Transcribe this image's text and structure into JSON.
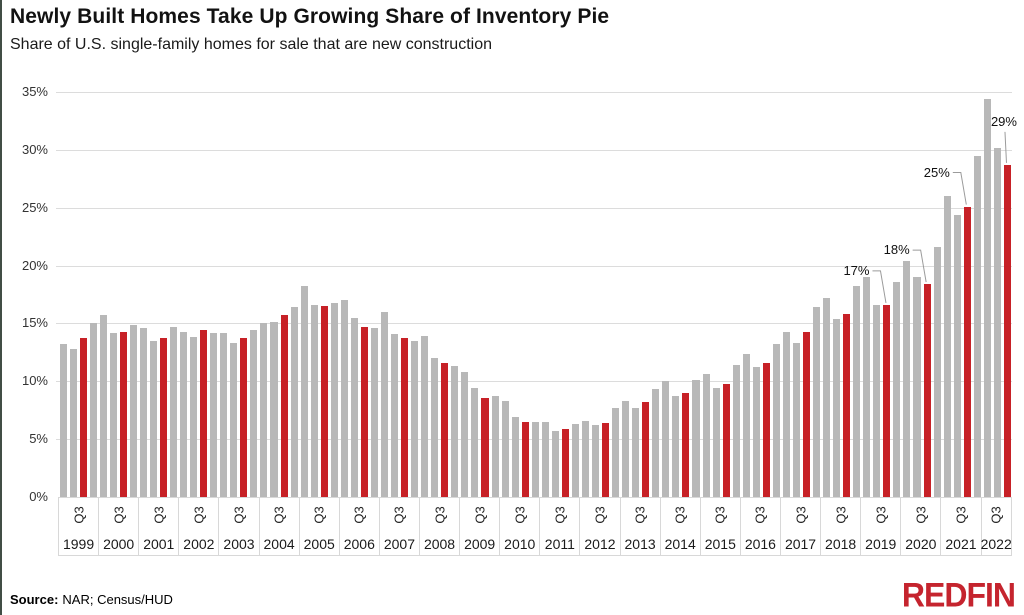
{
  "header": {
    "title": "Newly Built Homes Take Up Growing Share of Inventory Pie",
    "subtitle": "Share of U.S. single-family homes for sale that are new construction"
  },
  "chart_data": {
    "type": "bar",
    "title": "Newly Built Homes Take Up Growing Share of Inventory Pie",
    "subtitle": "Share of U.S. single-family homes for sale that are new construction",
    "unit": "percent",
    "ylim": [
      0,
      35
    ],
    "y_tick_step": 5,
    "y_tick_labels": [
      "0%",
      "5%",
      "10%",
      "15%",
      "20%",
      "25%",
      "30%",
      "35%"
    ],
    "grid": "horizontal",
    "legend": "none",
    "quarters": [
      "Q1",
      "Q2",
      "Q3",
      "Q4"
    ],
    "highlight_quarter": "Q3",
    "x_tick_label_per_year": "Q3",
    "years": [
      {
        "year": "1999",
        "values": [
          13.2,
          12.8,
          13.7,
          15.0
        ]
      },
      {
        "year": "2000",
        "values": [
          15.7,
          14.2,
          14.3,
          14.9
        ]
      },
      {
        "year": "2001",
        "values": [
          14.6,
          13.5,
          13.7,
          14.7
        ]
      },
      {
        "year": "2002",
        "values": [
          14.3,
          13.8,
          14.4,
          14.2
        ]
      },
      {
        "year": "2003",
        "values": [
          14.2,
          13.3,
          13.7,
          14.4
        ]
      },
      {
        "year": "2004",
        "values": [
          15.0,
          15.1,
          15.7,
          16.4
        ]
      },
      {
        "year": "2005",
        "values": [
          18.2,
          16.6,
          16.5,
          16.8
        ]
      },
      {
        "year": "2006",
        "values": [
          17.0,
          15.5,
          14.7,
          14.6
        ]
      },
      {
        "year": "2007",
        "values": [
          16.0,
          14.1,
          13.7,
          13.5
        ]
      },
      {
        "year": "2008",
        "values": [
          13.9,
          12.0,
          11.6,
          11.3
        ]
      },
      {
        "year": "2009",
        "values": [
          10.8,
          9.4,
          8.6,
          8.7
        ]
      },
      {
        "year": "2010",
        "values": [
          8.3,
          6.9,
          6.5,
          6.5
        ]
      },
      {
        "year": "2011",
        "values": [
          6.5,
          5.7,
          5.9,
          6.3
        ]
      },
      {
        "year": "2012",
        "values": [
          6.6,
          6.2,
          6.4,
          7.7
        ]
      },
      {
        "year": "2013",
        "values": [
          8.3,
          7.7,
          8.2,
          9.3
        ]
      },
      {
        "year": "2014",
        "values": [
          10.0,
          8.7,
          9.0,
          10.1
        ]
      },
      {
        "year": "2015",
        "values": [
          10.6,
          9.4,
          9.8,
          11.4
        ]
      },
      {
        "year": "2016",
        "values": [
          12.4,
          11.2,
          11.6,
          13.2
        ]
      },
      {
        "year": "2017",
        "values": [
          14.3,
          13.3,
          14.3,
          16.4
        ]
      },
      {
        "year": "2018",
        "values": [
          17.2,
          15.4,
          15.8,
          18.2
        ]
      },
      {
        "year": "2019",
        "values": [
          19.0,
          16.6,
          16.6,
          18.6
        ]
      },
      {
        "year": "2020",
        "values": [
          20.4,
          19.0,
          18.4,
          21.6
        ]
      },
      {
        "year": "2021",
        "values": [
          26.0,
          24.4,
          25.1,
          29.5
        ]
      },
      {
        "year": "2022",
        "values": [
          34.4,
          30.2,
          28.7
        ]
      }
    ],
    "annotations": [
      {
        "label": "17%",
        "year": "2019",
        "quarter": "Q3",
        "style": "elbow"
      },
      {
        "label": "18%",
        "year": "2020",
        "quarter": "Q3",
        "style": "elbow"
      },
      {
        "label": "25%",
        "year": "2021",
        "quarter": "Q3",
        "style": "elbow"
      },
      {
        "label": "29%",
        "year": "2022",
        "quarter": "Q3",
        "style": "drop"
      }
    ],
    "colors": {
      "bar_default": "#b8b8b8",
      "bar_highlight": "#c72127",
      "gridline": "#dcdcdc",
      "axis_box_border": "#d8d8d8",
      "leader_line": "#9b9b9b"
    }
  },
  "footer": {
    "source_label": "Source:",
    "source_text": "NAR; Census/HUD",
    "logo_text": "REDFIN"
  }
}
